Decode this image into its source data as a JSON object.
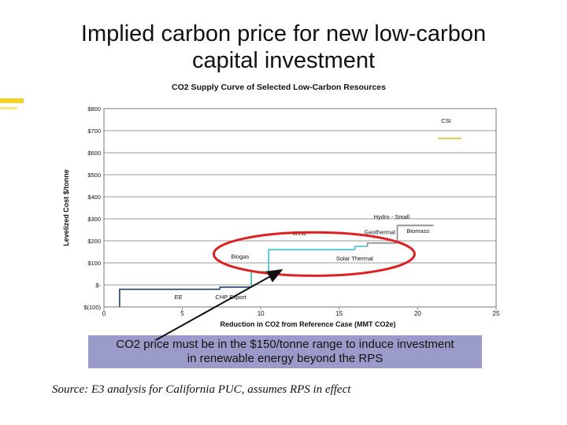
{
  "slide": {
    "title_line1": "Implied carbon price for new low-carbon",
    "title_line2": "capital investment",
    "callout_line1": "CO2 price must be in the $150/tonne range to induce investment",
    "callout_line2": "in renewable energy beyond the RPS",
    "source": "Source: E3 analysis for California PUC, assumes RPS in effect"
  },
  "chart_data": {
    "type": "line",
    "title": "CO2 Supply Curve of Selected Low-Carbon Resources",
    "xlabel": "Reduction in CO2 from Reference Case (MMT CO2e)",
    "ylabel": "Levelized Cost $/tonne",
    "xlim": [
      0,
      25
    ],
    "ylim": [
      -100,
      800
    ],
    "x_ticks": [
      "0",
      "5",
      "10",
      "15",
      "20",
      "25"
    ],
    "y_ticks": [
      "$(100)",
      "$-",
      "$100",
      "$200",
      "$300",
      "$400",
      "$500",
      "$600",
      "$700",
      "$800"
    ],
    "grid": true,
    "series": [
      {
        "name": "EE",
        "color": "#1f3f6f",
        "points": [
          [
            1.0,
            -100
          ],
          [
            1.0,
            -20
          ],
          [
            7.4,
            -20
          ]
        ]
      },
      {
        "name": "CHP Export",
        "color": "#1f3f6f",
        "points": [
          [
            7.4,
            -20
          ],
          [
            7.4,
            -10
          ],
          [
            9.4,
            -10
          ]
        ]
      },
      {
        "name": "Biogas",
        "color": "#2bbfa6",
        "points": [
          [
            9.4,
            -10
          ],
          [
            9.4,
            60
          ],
          [
            10.5,
            60
          ]
        ]
      },
      {
        "name": "Wind",
        "color": "#3fc0c8",
        "points": [
          [
            10.5,
            60
          ],
          [
            10.5,
            160
          ],
          [
            16.0,
            160
          ]
        ]
      },
      {
        "name": "Solar Thermal",
        "color": "#3fc0c8",
        "points": [
          [
            16.0,
            160
          ],
          [
            16.0,
            175
          ],
          [
            16.8,
            175
          ]
        ]
      },
      {
        "name": "Geothermal",
        "color": "#8a8a8a",
        "points": [
          [
            16.8,
            175
          ],
          [
            16.8,
            190
          ],
          [
            18.7,
            190
          ]
        ]
      },
      {
        "name": "Biomass",
        "color": "#8a8a8a",
        "points": [
          [
            18.7,
            190
          ],
          [
            18.7,
            270
          ],
          [
            21.0,
            270
          ]
        ]
      },
      {
        "name": "Hydro - Small",
        "color": "#8a8a8a",
        "points": [
          [
            18.7,
            270
          ],
          [
            21.0,
            270
          ]
        ]
      },
      {
        "name": "CSI",
        "color": "#e0c020",
        "points": [
          [
            21.3,
            665
          ],
          [
            22.8,
            665
          ]
        ]
      }
    ],
    "annotations": [
      {
        "text": "CSI",
        "x": 21.5,
        "y": 735
      },
      {
        "text": "Hydro - Small",
        "x": 17.2,
        "y": 300
      },
      {
        "text": "Geothermal",
        "x": 16.6,
        "y": 230
      },
      {
        "text": "Biomass",
        "x": 19.3,
        "y": 235
      },
      {
        "text": "Wind",
        "x": 12.0,
        "y": 225
      },
      {
        "text": "Biogas",
        "x": 8.1,
        "y": 120
      },
      {
        "text": "Solar Thermal",
        "x": 14.8,
        "y": 110
      },
      {
        "text": "EE",
        "x": 4.5,
        "y": -65
      },
      {
        "text": "CHP Export",
        "x": 7.1,
        "y": -65
      }
    ],
    "highlight": "red ellipse around $100-$250 range",
    "arrow": "from callout box to Biogas step"
  }
}
